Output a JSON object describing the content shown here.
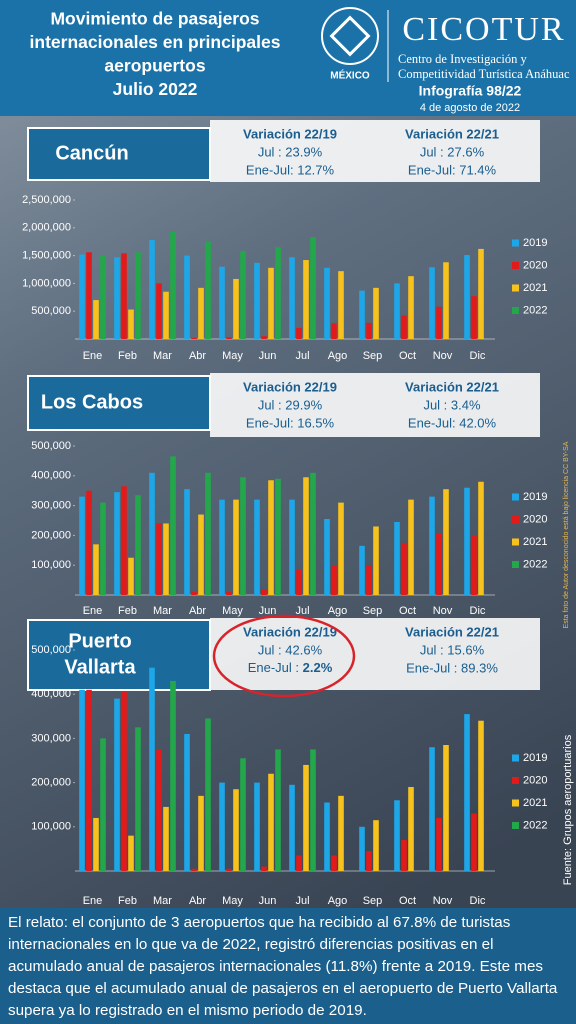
{
  "header": {
    "title_lines": [
      "Movimiento de pasajeros",
      "internacionales en principales",
      "aeropuertos",
      "Julio 2022"
    ],
    "org": "CICOTUR",
    "org_lines": [
      "Centro de Investigación y",
      "Competitividad Turística Anáhuac"
    ],
    "university": "MÉXICO",
    "issue": "Infografía 98/22",
    "date": "4 de agosto de 2022"
  },
  "chart_data": [
    {
      "type": "bar",
      "title_lines": [
        "Cancún"
      ],
      "variations": [
        {
          "title": "Variación 22/19",
          "jul": "Jul : 23.9%",
          "ene_jul": "Ene-Jul: 12.7%"
        },
        {
          "title": "Variación 22/21",
          "jul": "Jul : 27.6%",
          "ene_jul": "Ene-Jul: 71.4%"
        }
      ],
      "categories": [
        "Ene",
        "Feb",
        "Mar",
        "Abr",
        "May",
        "Jun",
        "Jul",
        "Ago",
        "Sep",
        "Oct",
        "Nov",
        "Dic"
      ],
      "series": [
        {
          "name": "2019",
          "color": "#1ea7e8",
          "values": [
            1520000,
            1470000,
            1780000,
            1500000,
            1300000,
            1370000,
            1470000,
            1280000,
            870000,
            1000000,
            1290000,
            1510000
          ]
        },
        {
          "name": "2020",
          "color": "#e31a1a",
          "values": [
            1560000,
            1540000,
            1000000,
            20000,
            30000,
            50000,
            200000,
            280000,
            290000,
            420000,
            580000,
            770000
          ]
        },
        {
          "name": "2021",
          "color": "#f7c21b",
          "values": [
            700000,
            530000,
            850000,
            920000,
            1080000,
            1280000,
            1420000,
            1220000,
            920000,
            1130000,
            1380000,
            1620000
          ]
        },
        {
          "name": "2022",
          "color": "#22a84b",
          "values": [
            1500000,
            1560000,
            1930000,
            1750000,
            1580000,
            1650000,
            1830000,
            null,
            null,
            null,
            null,
            null
          ]
        }
      ],
      "ylim": [
        0,
        2500000
      ],
      "yticks": [
        {
          "value": 500000,
          "label": "500,000"
        },
        {
          "value": 1000000,
          "label": "1,000,000"
        },
        {
          "value": 1500000,
          "label": "1,500,000"
        },
        {
          "value": 2000000,
          "label": "2,000,000"
        },
        {
          "value": 2500000,
          "label": "2,500,000"
        }
      ],
      "legend": "right"
    },
    {
      "type": "bar",
      "title_lines": [
        "Los Cabos"
      ],
      "variations": [
        {
          "title": "Variación 22/19",
          "jul": "Jul : 29.9%",
          "ene_jul": "Ene-Jul: 16.5%"
        },
        {
          "title": "Variación 22/21",
          "jul": "Jul : 3.4%",
          "ene_jul": "Ene-Jul: 42.0%"
        }
      ],
      "categories": [
        "Ene",
        "Feb",
        "Mar",
        "Abr",
        "May",
        "Jun",
        "Jul",
        "Ago",
        "Sep",
        "Oct",
        "Nov",
        "Dic"
      ],
      "series": [
        {
          "name": "2019",
          "color": "#1ea7e8",
          "values": [
            330000,
            345000,
            410000,
            355000,
            320000,
            320000,
            320000,
            255000,
            165000,
            245000,
            330000,
            360000
          ]
        },
        {
          "name": "2020",
          "color": "#e31a1a",
          "values": [
            350000,
            365000,
            240000,
            10000,
            10000,
            20000,
            85000,
            100000,
            100000,
            175000,
            205000,
            200000
          ]
        },
        {
          "name": "2021",
          "color": "#f7c21b",
          "values": [
            170000,
            125000,
            240000,
            270000,
            320000,
            385000,
            395000,
            310000,
            230000,
            320000,
            355000,
            380000
          ]
        },
        {
          "name": "2022",
          "color": "#22a84b",
          "values": [
            310000,
            335000,
            465000,
            410000,
            395000,
            390000,
            410000,
            null,
            null,
            null,
            null,
            null
          ]
        }
      ],
      "ylim": [
        0,
        500000
      ],
      "yticks": [
        {
          "value": 100000,
          "label": "100,000"
        },
        {
          "value": 200000,
          "label": "200,000"
        },
        {
          "value": 300000,
          "label": "300,000"
        },
        {
          "value": 400000,
          "label": "400,000"
        },
        {
          "value": 500000,
          "label": "500,000"
        }
      ],
      "legend": "right"
    },
    {
      "type": "bar",
      "title_lines": [
        "Puerto",
        "Vallarta"
      ],
      "variations": [
        {
          "title": "Variación 22/19",
          "jul": "Jul : 42.6%",
          "ene_jul_label": "Ene-Jul : ",
          "ene_jul_value": "2.2%"
        },
        {
          "title": "Variación 22/21",
          "jul": "Jul : 15.6%",
          "ene_jul": "Ene-Jul : 89.3%"
        }
      ],
      "categories": [
        "Ene",
        "Feb",
        "Mar",
        "Abr",
        "May",
        "Jun",
        "Jul",
        "Ago",
        "Sep",
        "Oct",
        "Nov",
        "Dic"
      ],
      "series": [
        {
          "name": "2019",
          "color": "#1ea7e8",
          "values": [
            410000,
            390000,
            460000,
            310000,
            200000,
            200000,
            195000,
            155000,
            100000,
            160000,
            280000,
            355000
          ]
        },
        {
          "name": "2020",
          "color": "#e31a1a",
          "values": [
            410000,
            405000,
            275000,
            5000,
            5000,
            10000,
            35000,
            35000,
            45000,
            70000,
            120000,
            130000
          ]
        },
        {
          "name": "2021",
          "color": "#f7c21b",
          "values": [
            120000,
            80000,
            145000,
            170000,
            185000,
            220000,
            240000,
            170000,
            115000,
            190000,
            285000,
            340000
          ]
        },
        {
          "name": "2022",
          "color": "#22a84b",
          "values": [
            300000,
            325000,
            430000,
            345000,
            255000,
            275000,
            275000,
            null,
            null,
            null,
            null,
            null
          ]
        }
      ],
      "ylim": [
        0,
        500000
      ],
      "yticks": [
        {
          "value": 100000,
          "label": "100,000"
        },
        {
          "value": 200000,
          "label": "200,000"
        },
        {
          "value": 300000,
          "label": "300,000"
        },
        {
          "value": 400000,
          "label": "400,000"
        },
        {
          "value": 500000,
          "label": "500,000"
        }
      ],
      "legend": "right"
    }
  ],
  "source": "Fuente: Grupos aeroportuarios",
  "photo_credit": "Esta foto de Autor desconocido está bajo licencia CC BY-SA",
  "footer": "El relato: el conjunto de 3 aeropuertos que ha recibido al 67.8% de turistas internacionales en lo que va de 2022, registró diferencias positivas en el acumulado anual de pasajeros internacionales (11.8%) frente a 2019. Este mes destaca que el acumulado anual de pasajeros en el aeropuerto de Puerto Vallarta supera ya lo registrado en el mismo periodo de 2019."
}
